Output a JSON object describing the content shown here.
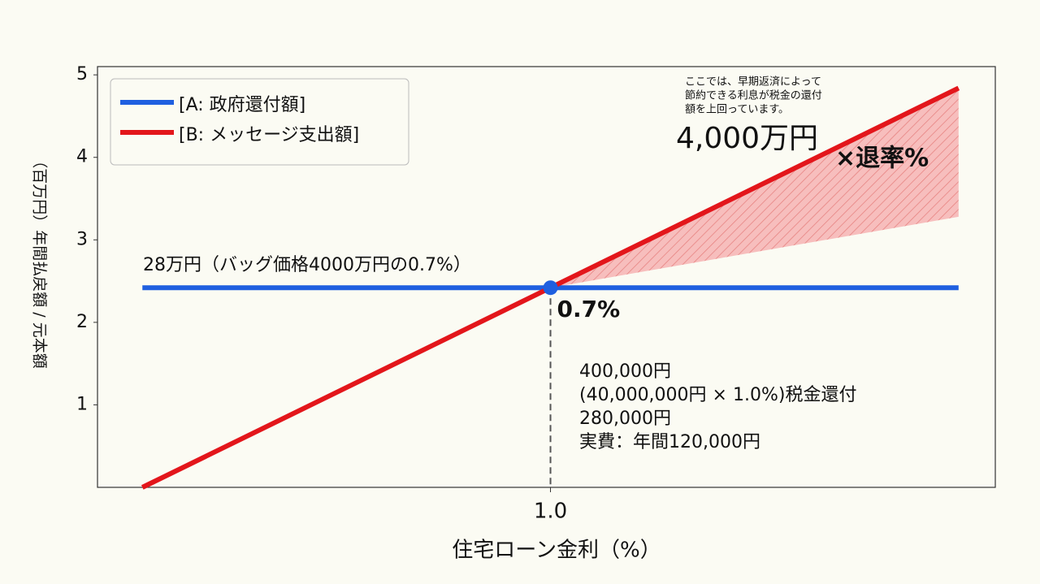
{
  "chart_data": {
    "type": "line",
    "xlabel": "住宅ローン金利（%）",
    "ylabel": "（百万円）年間払戻額 / 元本額",
    "xlim": [
      -0.11,
      2.09
    ],
    "ylim": [
      0,
      5.1
    ],
    "xticks": [
      {
        "value": 1,
        "label": "1.0"
      }
    ],
    "yticks": [
      1,
      2,
      3,
      4,
      5
    ],
    "legend": "upper left",
    "series": [
      {
        "name": "[A: 政府還付額]",
        "color": "#1f5fe0",
        "x": [
          0,
          2
        ],
        "values": [
          2.42,
          2.42
        ]
      },
      {
        "name": "[B: メッセージ支出額]",
        "color": "#e3161b",
        "x": [
          0,
          1,
          2
        ],
        "values": [
          0,
          2.42,
          4.84
        ]
      }
    ],
    "fill_between": {
      "x": [
        1,
        2
      ],
      "lower": [
        2.42,
        3.28
      ],
      "upper": [
        2.42,
        4.84
      ],
      "color": "#f08a8a"
    },
    "marker": {
      "x": 1,
      "value": 2.42,
      "color": "#1f5fe0",
      "label": "0.7%"
    },
    "annotations": [
      "ここでは、早期返済によって",
      "節約できる利息が税金の還付",
      "額を上回っています。",
      "4,000万円",
      "×退率%",
      "28万円（バッグ価格4000万円の0.7%）",
      "400,000円",
      "(40,000,000円 × 1.0%)税金還付",
      "280,000円",
      "実費：年間120,000円"
    ]
  }
}
